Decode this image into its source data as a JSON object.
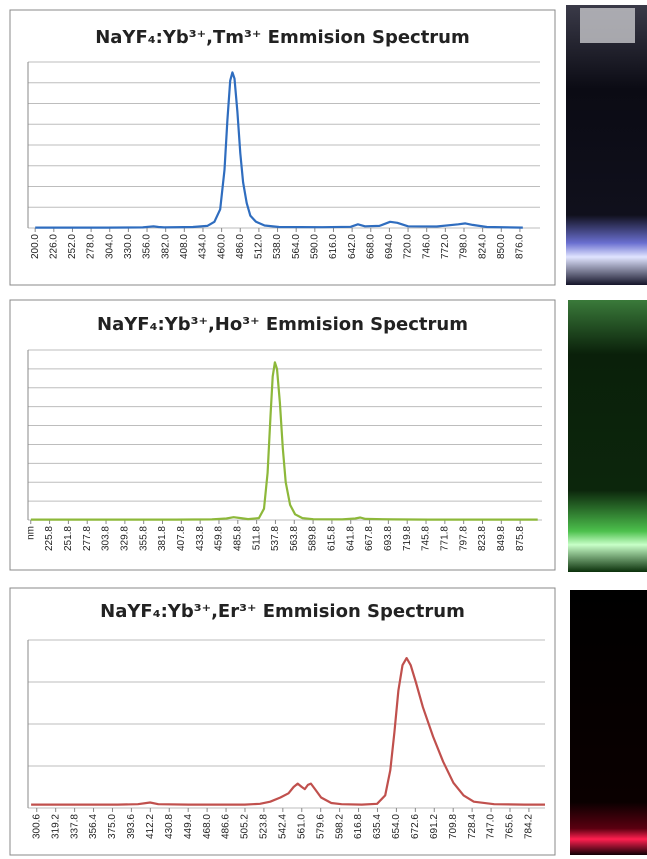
{
  "chart_data": [
    {
      "type": "line",
      "title": "NaYF₄:Yb³⁺,Tm³⁺ Emmision Spectrum",
      "color": "#2f6dbf",
      "grid": true,
      "xlim": [
        190,
        904
      ],
      "ylim": [
        0,
        8
      ],
      "yticks": [
        0,
        1,
        2,
        3,
        4,
        5,
        6,
        7,
        8
      ],
      "xticks": [
        {
          "value": 200,
          "label": "200.0"
        },
        {
          "value": 226,
          "label": "226.0"
        },
        {
          "value": 252,
          "label": "252.0"
        },
        {
          "value": 278,
          "label": "278.0"
        },
        {
          "value": 304,
          "label": "304.0"
        },
        {
          "value": 330,
          "label": "330.0"
        },
        {
          "value": 356,
          "label": "356.0"
        },
        {
          "value": 382,
          "label": "382.0"
        },
        {
          "value": 408,
          "label": "408.0"
        },
        {
          "value": 434,
          "label": "434.0"
        },
        {
          "value": 460,
          "label": "460.0"
        },
        {
          "value": 486,
          "label": "486.0"
        },
        {
          "value": 512,
          "label": "512.0"
        },
        {
          "value": 538,
          "label": "538.0"
        },
        {
          "value": 564,
          "label": "564.0"
        },
        {
          "value": 590,
          "label": "590.0"
        },
        {
          "value": 616,
          "label": "616.0"
        },
        {
          "value": 642,
          "label": "642.0"
        },
        {
          "value": 668,
          "label": "668.0"
        },
        {
          "value": 694,
          "label": "694.0"
        },
        {
          "value": 720,
          "label": "720.0"
        },
        {
          "value": 746,
          "label": "746.0"
        },
        {
          "value": 772,
          "label": "772.0"
        },
        {
          "value": 798,
          "label": "798.0"
        },
        {
          "value": 824,
          "label": "824.0"
        },
        {
          "value": 850,
          "label": "850.0"
        },
        {
          "value": 876,
          "label": "876.0"
        }
      ],
      "x": [
        200,
        250,
        300,
        350,
        365,
        372,
        380,
        420,
        440,
        450,
        458,
        464,
        468,
        472,
        475,
        478,
        482,
        486,
        490,
        495,
        500,
        508,
        520,
        540,
        600,
        640,
        650,
        660,
        680,
        695,
        705,
        720,
        760,
        790,
        800,
        810,
        830,
        880
      ],
      "values": [
        0.02,
        0.02,
        0.02,
        0.03,
        0.08,
        0.05,
        0.03,
        0.05,
        0.1,
        0.3,
        0.9,
        2.8,
        5.2,
        7.1,
        7.5,
        7.2,
        5.6,
        3.6,
        2.2,
        1.2,
        0.6,
        0.3,
        0.12,
        0.05,
        0.04,
        0.06,
        0.18,
        0.08,
        0.1,
        0.3,
        0.25,
        0.08,
        0.07,
        0.18,
        0.22,
        0.15,
        0.05,
        0.02
      ]
    },
    {
      "type": "line",
      "title": "NaYF₄:Yb³⁺,Ho³⁺ Emmision Spectrum",
      "color": "#8db83a",
      "grid": true,
      "xlim": [
        196,
        906
      ],
      "ylim": [
        0,
        9
      ],
      "yticks": [
        0,
        1,
        2,
        3,
        4,
        5,
        6,
        7,
        8,
        9
      ],
      "xticks": [
        {
          "value": 199.8,
          "label": "nm"
        },
        225.8,
        251.8,
        277.8,
        303.8,
        329.8,
        355.8,
        381.8,
        407.8,
        433.8,
        459.8,
        485.8,
        511.8,
        537.8,
        563.8,
        589.8,
        615.8,
        641.8,
        667.8,
        693.8,
        719.8,
        745.8,
        771.8,
        797.8,
        823.8,
        849.8,
        875.8
      ],
      "x": [
        200,
        250,
        300,
        350,
        400,
        450,
        470,
        480,
        490,
        500,
        515,
        522,
        527,
        531,
        534,
        537,
        540,
        544,
        548,
        552,
        558,
        565,
        575,
        590,
        630,
        648,
        655,
        662,
        700,
        750,
        800,
        850,
        900
      ],
      "values": [
        0.02,
        0.02,
        0.02,
        0.02,
        0.02,
        0.03,
        0.08,
        0.15,
        0.1,
        0.05,
        0.1,
        0.6,
        2.5,
        5.5,
        7.6,
        8.35,
        8.0,
        6.2,
        3.8,
        2.0,
        0.8,
        0.3,
        0.1,
        0.04,
        0.03,
        0.08,
        0.13,
        0.06,
        0.03,
        0.02,
        0.02,
        0.02,
        0.02
      ]
    },
    {
      "type": "line",
      "title": "NaYF₄:Yb³⁺,Er³⁺ Emmision Spectrum",
      "color": "#c0504d",
      "grid": true,
      "xlim": [
        292,
        800
      ],
      "ylim": [
        0,
        4
      ],
      "yticks": [
        0,
        1,
        2,
        3,
        4
      ],
      "xticks": [
        300.6,
        319.2,
        337.8,
        356.4,
        {
          "value": 375,
          "label": "375.0"
        },
        393.6,
        412.2,
        430.8,
        449.4,
        {
          "value": 468,
          "label": "468.0"
        },
        486.6,
        505.2,
        523.8,
        542.4,
        {
          "value": 561,
          "label": "561.0"
        },
        579.6,
        598.2,
        616.8,
        635.4,
        {
          "value": 654,
          "label": "654.0"
        },
        672.6,
        691.2,
        709.8,
        728.4,
        {
          "value": 747,
          "label": "747.0"
        },
        765.6,
        784.2
      ],
      "x": [
        295,
        320,
        350,
        380,
        400,
        412,
        420,
        450,
        480,
        505,
        520,
        530,
        540,
        548,
        553,
        557,
        561,
        564,
        567,
        570,
        574,
        580,
        590,
        600,
        620,
        635,
        643,
        648,
        652,
        656,
        660,
        664,
        668,
        673,
        680,
        690,
        700,
        710,
        720,
        730,
        750,
        780,
        800
      ],
      "values": [
        0.08,
        0.08,
        0.08,
        0.08,
        0.09,
        0.13,
        0.09,
        0.08,
        0.08,
        0.08,
        0.1,
        0.15,
        0.25,
        0.35,
        0.5,
        0.58,
        0.5,
        0.45,
        0.55,
        0.58,
        0.45,
        0.25,
        0.12,
        0.09,
        0.08,
        0.1,
        0.3,
        0.9,
        1.8,
        2.8,
        3.4,
        3.57,
        3.4,
        3.0,
        2.4,
        1.7,
        1.1,
        0.6,
        0.3,
        0.15,
        0.09,
        0.08,
        0.08
      ]
    }
  ]
}
